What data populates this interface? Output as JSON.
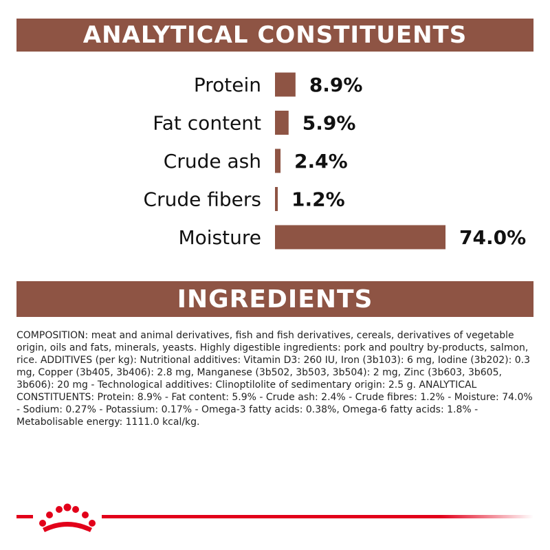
{
  "colors": {
    "brand": "#8e5444",
    "accent_red": "#e2001a"
  },
  "analytical_title": "ANALYTICAL CONSTITUENTS",
  "ingredients_title": "INGREDIENTS",
  "chart_data": {
    "type": "bar",
    "orientation": "horizontal",
    "categories": [
      "Protein",
      "Fat content",
      "Crude ash",
      "Crude fibers",
      "Moisture"
    ],
    "values": [
      8.9,
      5.9,
      2.4,
      1.2,
      74.0
    ],
    "value_labels": [
      "8.9%",
      "5.9%",
      "2.4%",
      "1.2%",
      "74.0%"
    ],
    "unit": "%",
    "grid": false,
    "legend": "none"
  },
  "composition_text": "COMPOSITION: meat and animal derivatives, fish and fish derivatives, cereals, derivatives of vegetable origin, oils and fats, minerals, yeasts. Highly digestible ingredients: pork and poultry by-products, salmon, rice. ADDITIVES (per kg): Nutritional additives: Vitamin D3: 260 IU, Iron (3b103): 6 mg, Iodine (3b202): 0.3 mg, Copper (3b405, 3b406): 2.8 mg, Manganese (3b502, 3b503, 3b504): 2 mg, Zinc (3b603, 3b605, 3b606): 20 mg - Technological additives: Clinoptilolite of sedimentary origin: 2.5 g. ANALYTICAL CONSTITUENTS: Protein: 8.9% - Fat content: 5.9% - Crude ash: 2.4% - Crude fibres: 1.2% - Moisture: 74.0% - Sodium: 0.27% - Potassium: 0.17% - Omega-3 fatty acids: 0.38%, Omega-6 fatty acids: 1.8% - Metabolisable energy: 1111.0 kcal/kg.",
  "logo": {
    "icon": "crown-icon"
  }
}
